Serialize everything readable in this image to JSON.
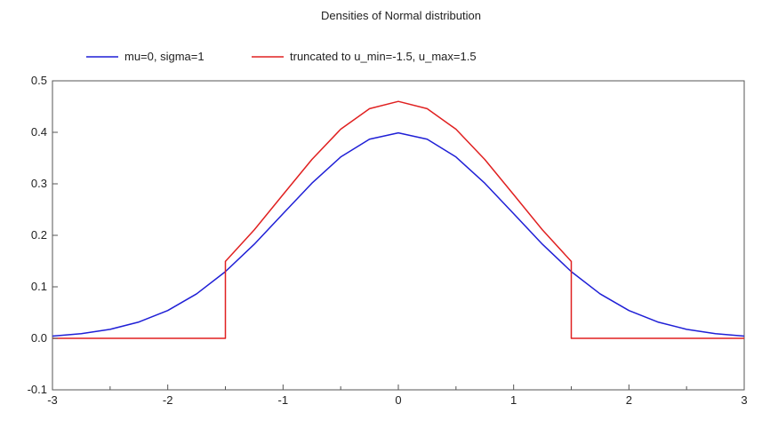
{
  "chart_data": {
    "type": "line",
    "title": "Densities of Normal distribution",
    "xlabel": "",
    "ylabel": "",
    "xlim": [
      -3,
      3
    ],
    "ylim": [
      -0.1,
      0.5
    ],
    "x_ticks": [
      -3,
      -2,
      -1,
      0,
      1,
      2,
      3
    ],
    "x_tick_labels": [
      "-3",
      "-2",
      "-1",
      "0",
      "1",
      "2",
      "3"
    ],
    "y_ticks": [
      -0.1,
      0.0,
      0.1,
      0.2,
      0.3,
      0.4,
      0.5
    ],
    "y_tick_labels": [
      "-0.1",
      "0.0",
      "0.1",
      "0.2",
      "0.3",
      "0.4",
      "0.5"
    ],
    "grid": true,
    "legend_position": "top",
    "series": [
      {
        "name": "mu=0, sigma=1",
        "color": "#1f1fd6",
        "x": [
          -3.0,
          -2.75,
          -2.5,
          -2.25,
          -2.0,
          -1.75,
          -1.5,
          -1.25,
          -1.0,
          -0.75,
          -0.5,
          -0.25,
          0.0,
          0.25,
          0.5,
          0.75,
          1.0,
          1.25,
          1.5,
          1.75,
          2.0,
          2.25,
          2.5,
          2.75,
          3.0
        ],
        "y": [
          0.0044,
          0.0091,
          0.0175,
          0.0317,
          0.054,
          0.0863,
          0.1295,
          0.1826,
          0.242,
          0.3011,
          0.3521,
          0.3867,
          0.3989,
          0.3867,
          0.3521,
          0.3011,
          0.242,
          0.1826,
          0.1295,
          0.0863,
          0.054,
          0.0317,
          0.0175,
          0.0091,
          0.0044
        ]
      },
      {
        "name": "truncated to u_min=-1.5, u_max=1.5",
        "color": "#e02020",
        "x": [
          -3.0,
          -1.5,
          -1.5,
          -1.25,
          -1.0,
          -0.75,
          -0.5,
          -0.25,
          0.0,
          0.25,
          0.5,
          0.75,
          1.0,
          1.25,
          1.5,
          1.5,
          3.0
        ],
        "y": [
          0.0,
          0.0,
          0.1493,
          0.2105,
          0.2791,
          0.3472,
          0.406,
          0.4459,
          0.46,
          0.4459,
          0.406,
          0.3472,
          0.2791,
          0.2105,
          0.1493,
          0.0,
          0.0
        ]
      }
    ]
  }
}
